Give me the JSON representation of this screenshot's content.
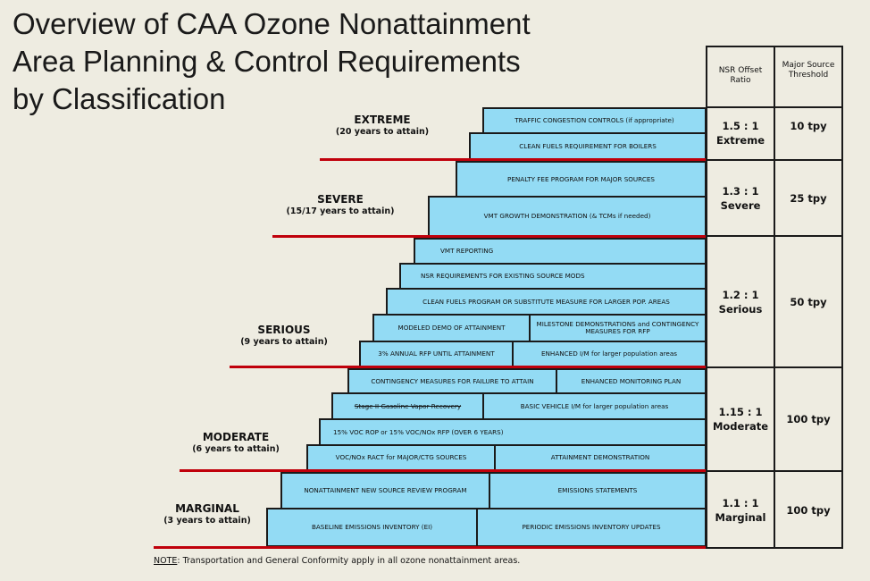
{
  "title": {
    "line1": "Overview of CAA Ozone Nonattainment",
    "line2": "Area Planning & Control Requirements",
    "line3": "by Classification"
  },
  "classifications": {
    "extreme": {
      "name": "EXTREME",
      "years": "(20 years to attain)"
    },
    "severe": {
      "name": "SEVERE",
      "years": "(15/17 years to attain)"
    },
    "serious": {
      "name": "SERIOUS",
      "years": "(9 years to attain)"
    },
    "moderate": {
      "name": "MODERATE",
      "years": "(6 years to attain)"
    },
    "marginal": {
      "name": "MARGINAL",
      "years": "(3 years to attain)"
    }
  },
  "requirements": {
    "traffic": "TRAFFIC CONGESTION CONTROLS (if appropriate)",
    "clean_fuels_boilers": "CLEAN FUELS REQUIREMENT FOR BOILERS",
    "penalty_fee": "PENALTY FEE PROGRAM FOR MAJOR SOURCES",
    "vmt_growth": "VMT GROWTH DEMONSTRATION (& TCMs if needed)",
    "vmt_reporting": "VMT REPORTING",
    "nsr_existing": "NSR REQUIREMENTS FOR EXISTING SOURCE MODS",
    "clean_fuels_program": "CLEAN FUELS PROGRAM OR SUBSTITUTE MEASURE FOR LARGER POP. AREAS",
    "modeled_demo": "MODELED DEMO OF ATTAINMENT",
    "milestone": "MILESTONE DEMONSTRATIONS and CONTINGENCY MEASURES FOR RFP",
    "rfp_3pct": "3% ANNUAL RFP UNTIL ATTAINMENT",
    "enhanced_im": "ENHANCED I/M for larger population areas",
    "contingency_attain": "CONTINGENCY MEASURES FOR FAILURE TO ATTAIN",
    "enhanced_monitoring": "ENHANCED MONITORING PLAN",
    "stage2": "Stage II Gasoline Vapor Recovery",
    "basic_im": "BASIC VEHICLE I/M for larger population areas",
    "voc_rop": "15% VOC ROP or 15% VOC/NOx RFP (OVER 6 YEARS)",
    "voc_nox_ract": "VOC/NOx RACT for MAJOR/CTG SOURCES",
    "attainment_demo": "ATTAINMENT DEMONSTRATION",
    "nonattainment_nsr": "NONATTAINMENT NEW SOURCE REVIEW PROGRAM",
    "emissions_statements": "EMISSIONS STATEMENTS",
    "baseline_ei": "BASELINE EMISSIONS INVENTORY (EI)",
    "periodic_ei": "PERIODIC EMISSIONS INVENTORY UPDATES"
  },
  "table": {
    "header_nsr": "NSR Offset Ratio",
    "header_major": "Major Source Threshold",
    "rows": [
      {
        "ratio": "1.5 : 1",
        "cls": "Extreme",
        "threshold": "10 tpy"
      },
      {
        "ratio": "1.3 : 1",
        "cls": "Severe",
        "threshold": "25 tpy"
      },
      {
        "ratio": "1.2 : 1",
        "cls": "Serious",
        "threshold": "50 tpy"
      },
      {
        "ratio": "1.15 : 1",
        "cls": "Moderate",
        "threshold": "100 tpy"
      },
      {
        "ratio": "1.1 : 1",
        "cls": "Marginal",
        "threshold": "100 tpy"
      }
    ]
  },
  "note": {
    "label": "NOTE",
    "text": ": Transportation and General Conformity apply in all ozone nonattainment areas."
  }
}
